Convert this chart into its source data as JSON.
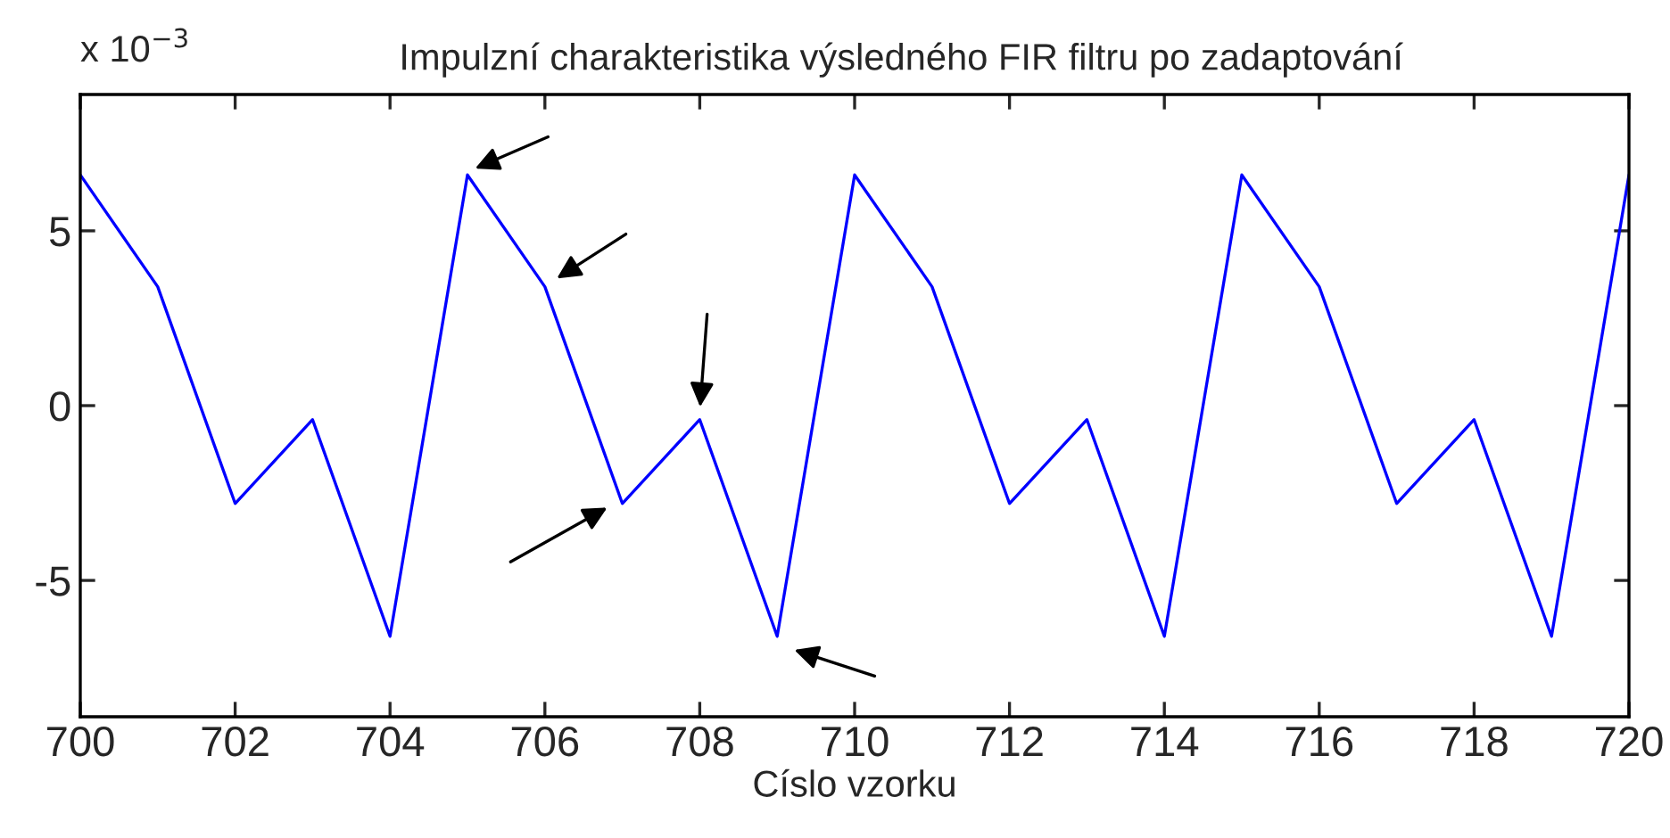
{
  "chart_data": {
    "type": "line",
    "title": "Impulzní charakteristika výsledného FIR filtru po zadaptování",
    "xlabel": "Císlo vzorku",
    "x": [
      700,
      701,
      702,
      703,
      704,
      705,
      706,
      707,
      708,
      709,
      710,
      711,
      712,
      713,
      714,
      715,
      716,
      717,
      718,
      719,
      720
    ],
    "series": [
      {
        "color": "#0000ff",
        "values": [
          6.6,
          3.4,
          -2.8,
          -0.4,
          -6.6,
          6.6,
          3.4,
          -2.8,
          -0.4,
          -6.6,
          6.6,
          3.4,
          -2.8,
          -0.4,
          -6.6,
          6.6,
          3.4,
          -2.8,
          -0.4,
          -6.6,
          6.6
        ]
      }
    ],
    "xlim": [
      700,
      720
    ],
    "xticks": [
      700,
      702,
      704,
      706,
      708,
      710,
      712,
      714,
      716,
      718,
      720
    ],
    "ylim": [
      -8.9,
      8.9
    ],
    "yticks": [
      -5,
      0,
      5
    ],
    "grid": false,
    "marker": "none",
    "line_style": "solid",
    "annotations": [
      "x 10$^{−3}$"
    ]
  }
}
